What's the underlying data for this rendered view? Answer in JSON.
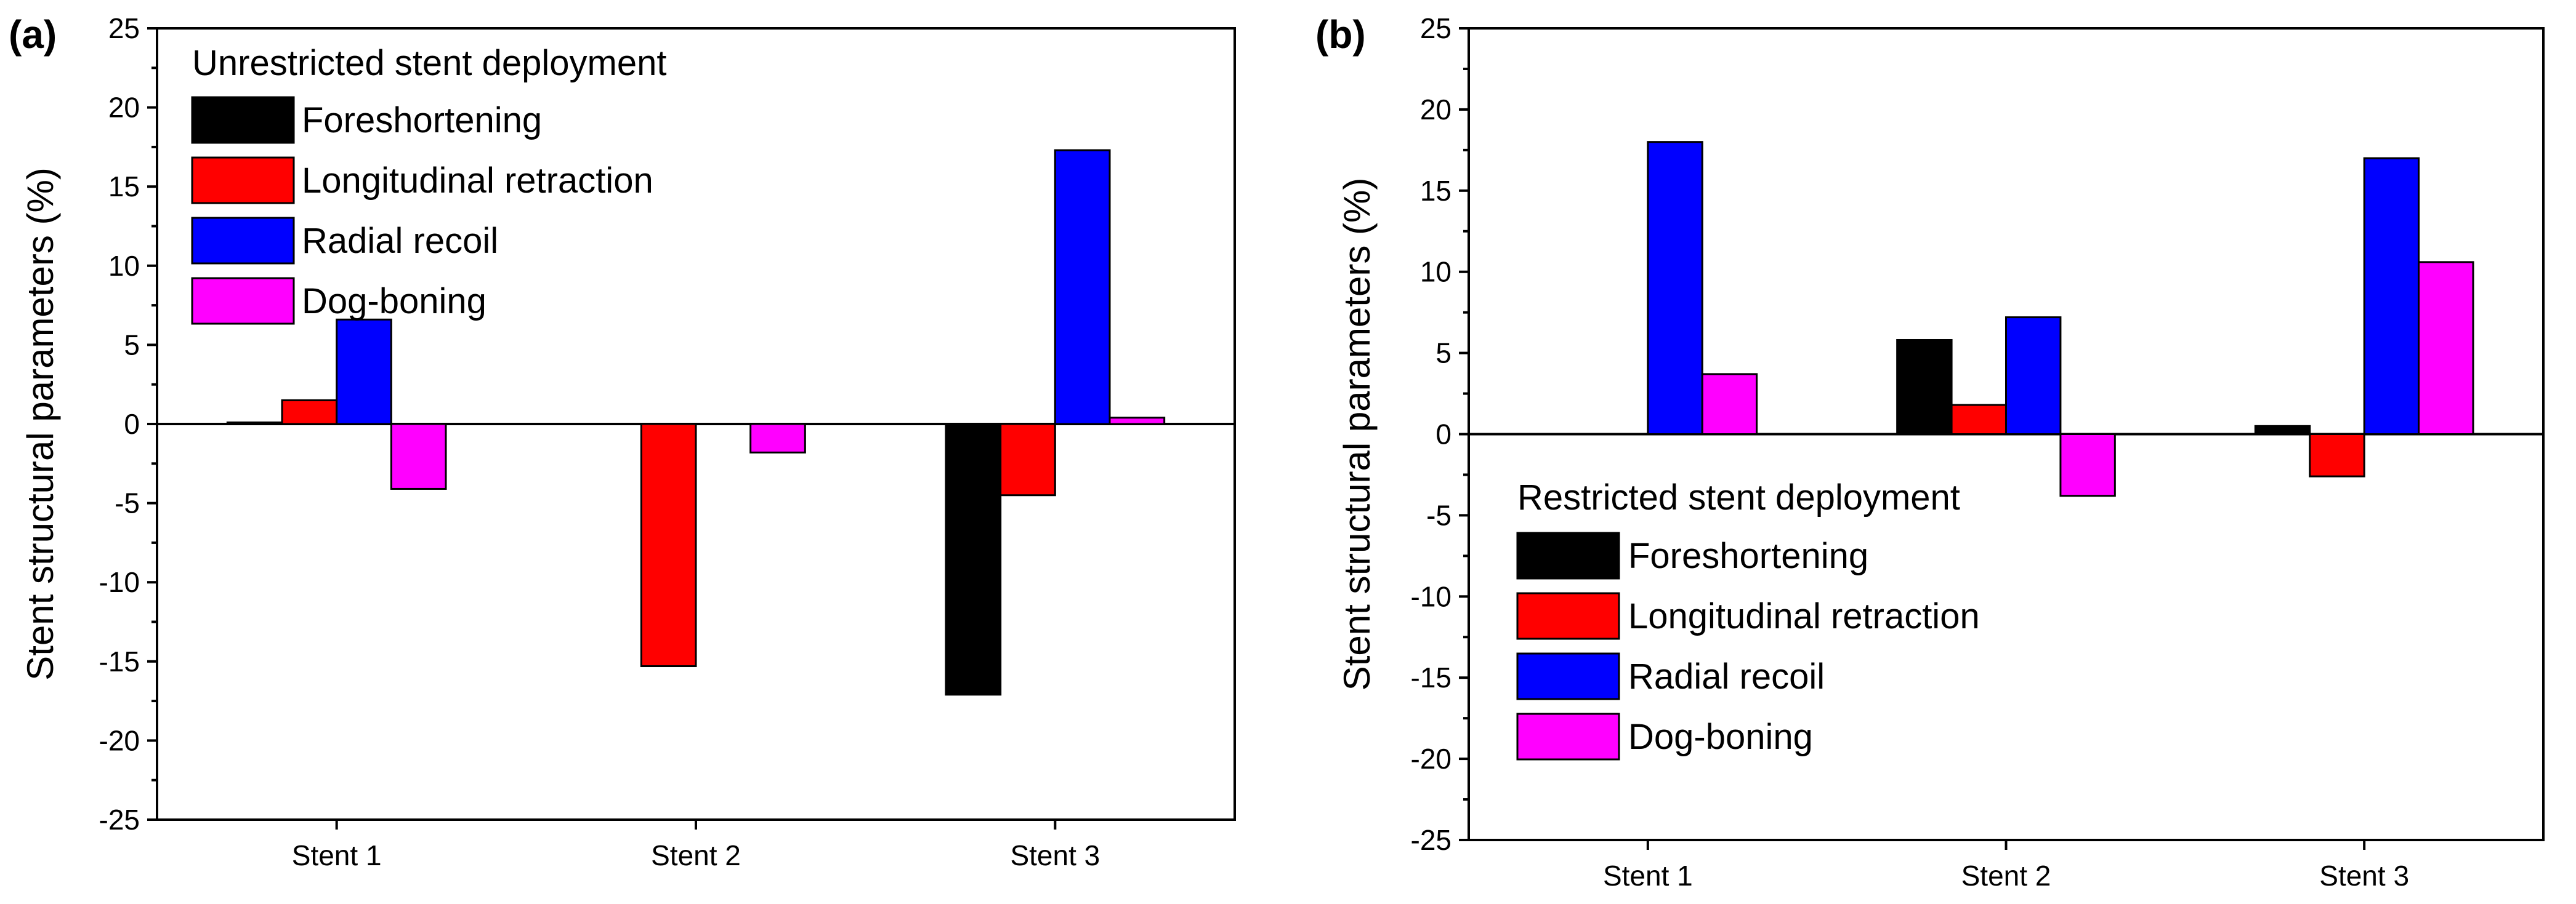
{
  "chart_data": [
    {
      "type": "bar",
      "panel_label": "(a)",
      "title": "",
      "ylabel": "Stent structural parameters (%)",
      "xlabel": "",
      "ylim": [
        -25,
        25
      ],
      "yticks": [
        -25,
        -20,
        -15,
        -10,
        -5,
        0,
        5,
        10,
        15,
        20,
        25
      ],
      "categories": [
        "Stent 1",
        "Stent 2",
        "Stent 3"
      ],
      "legend_title": "Unrestricted stent deployment",
      "legend_position": "top-left",
      "series": [
        {
          "name": "Foreshortening",
          "color": "#000000",
          "values": [
            0.1,
            0.0,
            -17.1
          ]
        },
        {
          "name": "Longitudinal retraction",
          "color": "#ff0000",
          "values": [
            1.5,
            -15.3,
            -4.5
          ]
        },
        {
          "name": "Radial recoil",
          "color": "#0000ff",
          "values": [
            6.6,
            0.0,
            17.3
          ]
        },
        {
          "name": "Dog-boning",
          "color": "#ff00ff",
          "values": [
            -4.1,
            -1.8,
            0.4
          ]
        }
      ]
    },
    {
      "type": "bar",
      "panel_label": "(b)",
      "title": "",
      "ylabel": "Stent structural parameters (%)",
      "xlabel": "",
      "ylim": [
        -25,
        25
      ],
      "yticks": [
        -25,
        -20,
        -15,
        -10,
        -5,
        0,
        5,
        10,
        15,
        20,
        25
      ],
      "categories": [
        "Stent 1",
        "Stent 2",
        "Stent 3"
      ],
      "legend_title": "Restricted stent deployment",
      "legend_position": "bottom-left",
      "series": [
        {
          "name": "Foreshortening",
          "color": "#000000",
          "values": [
            0.0,
            5.8,
            0.5
          ]
        },
        {
          "name": "Longitudinal retraction",
          "color": "#ff0000",
          "values": [
            0.0,
            1.8,
            -2.6
          ]
        },
        {
          "name": "Radial recoil",
          "color": "#0000ff",
          "values": [
            18.0,
            7.2,
            17.0
          ]
        },
        {
          "name": "Dog-boning",
          "color": "#ff00ff",
          "values": [
            3.7,
            -3.8,
            10.6
          ]
        }
      ]
    }
  ]
}
